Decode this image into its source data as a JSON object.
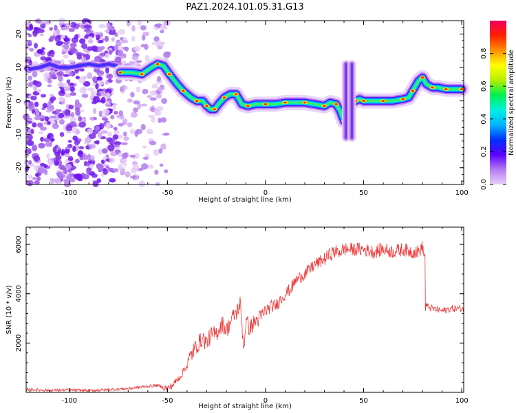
{
  "title": "PAZ1.2024.101.05.31.G13",
  "chart_data": [
    {
      "type": "heatmap",
      "xlabel": "Height of straight line (km)",
      "ylabel": "Frequency (Hz)",
      "xlim": [
        -122,
        101
      ],
      "ylim": [
        -25,
        24
      ],
      "xticks": [
        -100,
        -50,
        0,
        50,
        100
      ],
      "yticks": [
        -20,
        -10,
        0,
        10,
        20
      ],
      "grid": false,
      "colorbar": {
        "label": "Normalized spectral amplitude",
        "range": [
          0,
          1
        ],
        "ticks": [
          "0.0",
          "0.2",
          "0.4",
          "0.6",
          "0.8"
        ],
        "colors": [
          "#e8d0f8",
          "#b47cf0",
          "#5a00ff",
          "#0030ff",
          "#00b4ff",
          "#00f0e0",
          "#00f050",
          "#b4f000",
          "#ffff00",
          "#ff9000",
          "#ff2000",
          "#f0005a"
        ]
      },
      "noise_region_x": [
        -122,
        -50
      ],
      "ridge": {
        "x": [
          -74,
          -68,
          -63,
          -58,
          -55,
          -52,
          -49,
          -45,
          -42,
          -38,
          -35,
          -32,
          -30,
          -28,
          -26,
          -24,
          -21,
          -18,
          -15,
          -12,
          -9,
          -5,
          0,
          5,
          10,
          15,
          20,
          25,
          30,
          33,
          36,
          38,
          40
        ],
        "y": [
          8.5,
          8.5,
          8,
          10,
          11,
          10.5,
          8,
          5,
          3,
          1,
          0,
          0,
          -1.5,
          -2.5,
          -2.5,
          -1,
          1,
          2,
          2,
          -1,
          -1.5,
          -1,
          -1,
          -1,
          -0.5,
          -0.5,
          -0.5,
          -1,
          -1.5,
          -0.5,
          -1,
          -3,
          -6
        ]
      },
      "ridge_right": {
        "x": [
          46,
          48,
          50,
          55,
          60,
          65,
          70,
          73,
          75,
          78,
          80,
          82,
          85,
          88,
          92,
          96,
          100
        ],
        "y": [
          0,
          0.5,
          0,
          0,
          0,
          0,
          0.5,
          1,
          3,
          6,
          7,
          5,
          4,
          4,
          3.5,
          3.5,
          3.5
        ]
      },
      "noise_ridge": {
        "x": [
          -120,
          -115,
          -110,
          -105,
          -100,
          -95,
          -90,
          -85,
          -80,
          -76
        ],
        "y": [
          9.5,
          10,
          11,
          10,
          10,
          10.5,
          11,
          10.5,
          11,
          10.5
        ]
      },
      "vertical_streaks_x": [
        41,
        44
      ],
      "vertical_streaks_y": [
        -11,
        11
      ]
    },
    {
      "type": "line",
      "xlabel": "Height of straight line (km)",
      "ylabel": "SNR (10 * v/v)",
      "xlim": [
        -122,
        101
      ],
      "ylim": [
        0,
        6700
      ],
      "xticks": [
        -100,
        -50,
        0,
        50,
        100
      ],
      "yticks": [
        2000,
        4000,
        6000
      ],
      "grid": false,
      "color": "#ee3333",
      "series": [
        {
          "x": [
            -122,
            -110,
            -100,
            -90,
            -80,
            -70,
            -60,
            -55,
            -50,
            -48,
            -45,
            -43,
            -40,
            -38,
            -35,
            -32,
            -30,
            -28,
            -25,
            -22,
            -20,
            -17,
            -15,
            -13,
            -11,
            -10,
            -8,
            -5,
            -3,
            0,
            3,
            5,
            8,
            10,
            13,
            15,
            18,
            20,
            23,
            25,
            28,
            30,
            33,
            35,
            38,
            40,
            45,
            50,
            55,
            60,
            65,
            70,
            75,
            78,
            80,
            81,
            82,
            85,
            90,
            95,
            101
          ],
          "y": [
            120,
            80,
            100,
            70,
            110,
            150,
            250,
            280,
            150,
            250,
            500,
            700,
            1100,
            1500,
            1900,
            2200,
            2000,
            2300,
            2400,
            2800,
            2500,
            3000,
            3200,
            3600,
            1800,
            2900,
            2600,
            2900,
            3000,
            3300,
            3500,
            3500,
            3800,
            4000,
            4200,
            4500,
            4700,
            4800,
            5000,
            5200,
            5300,
            5400,
            5600,
            5700,
            5700,
            5800,
            5800,
            5800,
            5700,
            5800,
            5700,
            5800,
            5700,
            5700,
            5900,
            5500,
            3500,
            3400,
            3300,
            3400,
            3400
          ]
        }
      ]
    }
  ]
}
